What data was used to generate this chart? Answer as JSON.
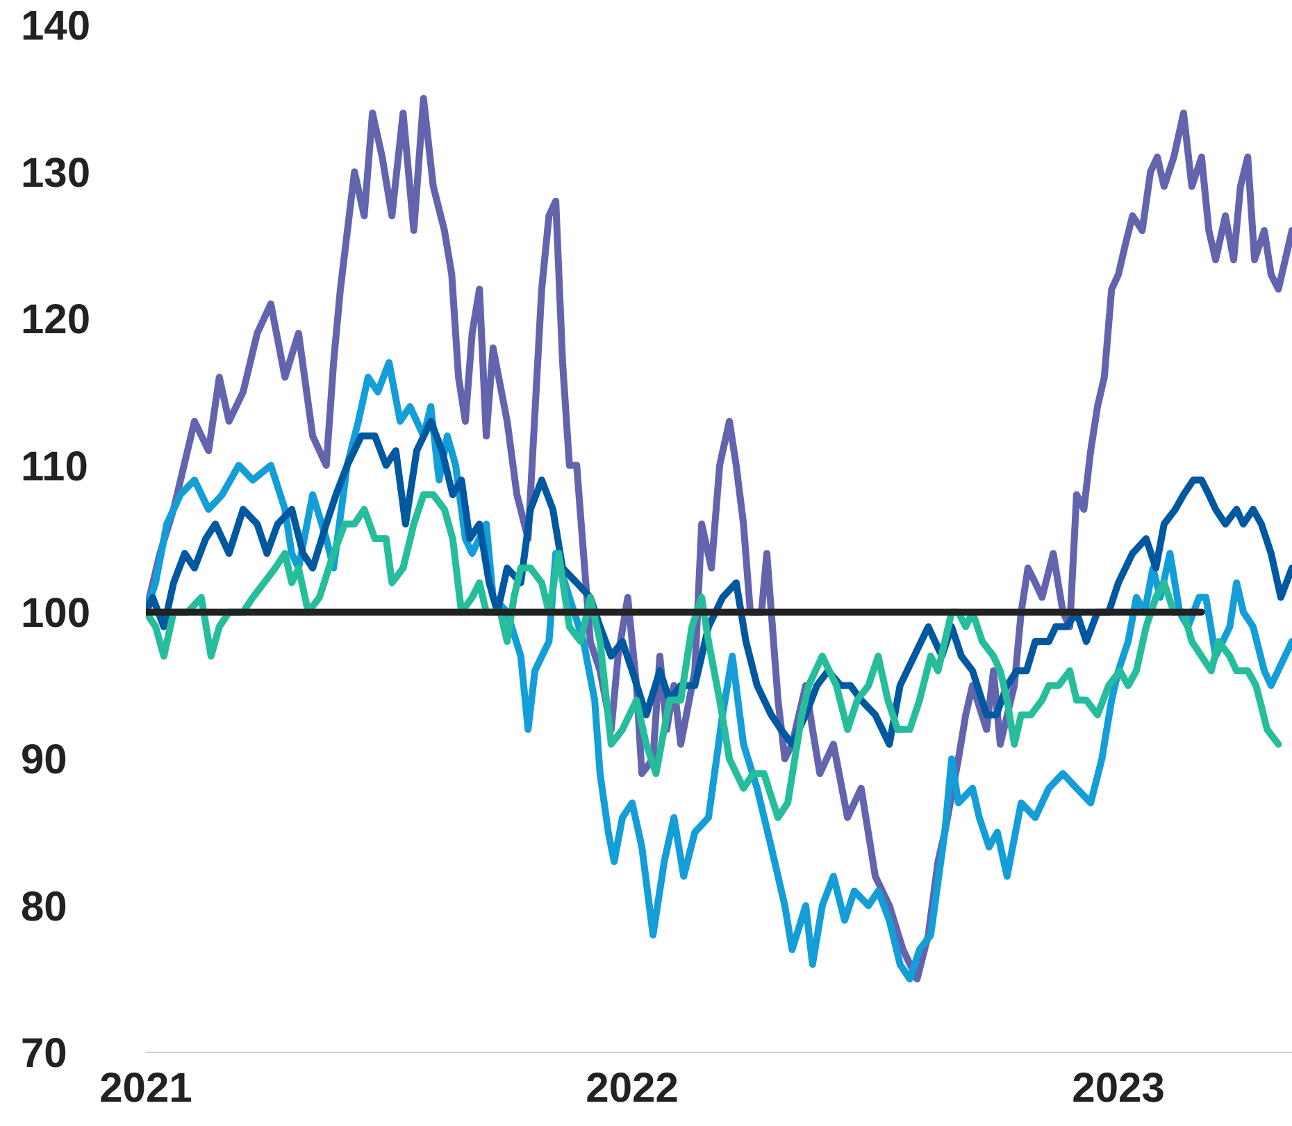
{
  "chart_data": {
    "type": "line",
    "xlim": [
      2021,
      2023.357
    ],
    "xticks": [
      2021,
      2022,
      2023
    ],
    "ylim": [
      70,
      140
    ],
    "yticks": [
      70,
      80,
      90,
      100,
      110,
      120,
      130,
      140
    ],
    "grid": false,
    "marker": "none",
    "line_style": "solid",
    "series": [
      {
        "color": "#6264ae",
        "x": [
          2021,
          2021.029,
          2021.057,
          2021.1,
          2021.129,
          2021.151,
          2021.171,
          2021.2,
          2021.229,
          2021.257,
          2021.286,
          2021.314,
          2021.343,
          2021.371,
          2021.386,
          2021.4,
          2021.429,
          2021.449,
          2021.466,
          2021.486,
          2021.506,
          2021.529,
          2021.551,
          2021.571,
          2021.591,
          2021.614,
          2021.629,
          2021.643,
          2021.657,
          2021.671,
          2021.686,
          2021.7,
          2021.714,
          2021.743,
          2021.763,
          2021.786,
          2021.814,
          2021.829,
          2021.843,
          2021.857,
          2021.871,
          2021.886,
          2021.9,
          2021.914,
          2021.934,
          2021.957,
          2021.971,
          2021.991,
          2022.009,
          2022.02,
          2022.043,
          2022.057,
          2022.071,
          2022.086,
          2022.1,
          2022.129,
          2022.143,
          2022.163,
          2022.18,
          2022.2,
          2022.214,
          2022.229,
          2022.243,
          2022.266,
          2022.277,
          2022.3,
          2022.314,
          2022.329,
          2022.357,
          2022.371,
          2022.386,
          2022.414,
          2022.443,
          2022.471,
          2022.5,
          2022.529,
          2022.557,
          2022.586,
          2022.609,
          2022.629,
          2022.643,
          2022.671,
          2022.686,
          2022.7,
          2022.729,
          2022.743,
          2022.757,
          2022.786,
          2022.8,
          2022.814,
          2022.829,
          2022.843,
          2022.866,
          2022.886,
          2022.9,
          2022.914,
          2022.929,
          2022.943,
          2022.957,
          2022.971,
          2022.986,
          2023,
          2023.014,
          2023.029,
          2023.049,
          2023.066,
          2023.08,
          2023.094,
          2023.114,
          2023.134,
          2023.151,
          2023.171,
          2023.186,
          2023.2,
          2023.22,
          2023.237,
          2023.251,
          2023.266,
          2023.28,
          2023.3,
          2023.314,
          2023.329,
          2023.343,
          2023.357
        ],
        "values": [
          100,
          104,
          107,
          113,
          111,
          116,
          113,
          115,
          119,
          121,
          116,
          119,
          112,
          110,
          117,
          122,
          130,
          127,
          134,
          131,
          127,
          134,
          126,
          135,
          129,
          126,
          123,
          116,
          113,
          119,
          122,
          112,
          118,
          113,
          108,
          105,
          122,
          127,
          128,
          117,
          110,
          110,
          104,
          98,
          96,
          92,
          97,
          101,
          95,
          89,
          90,
          97,
          92,
          95,
          91,
          96,
          106,
          103,
          110,
          113,
          110,
          106,
          100,
          100,
          104,
          94,
          90,
          91,
          95,
          92,
          89,
          91,
          86,
          88,
          82,
          80,
          77,
          75,
          78,
          83,
          85,
          90,
          93,
          95,
          92,
          96,
          91,
          95,
          100,
          103,
          102,
          101,
          104,
          100,
          99,
          108,
          107,
          111,
          114,
          116,
          122,
          123,
          125,
          127,
          126,
          130,
          131,
          129,
          131,
          134,
          129,
          131,
          126,
          124,
          127,
          124,
          129,
          131,
          124,
          126,
          123,
          122,
          124,
          126
        ]
      },
      {
        "color": "#139ed8",
        "x": [
          2021,
          2021.02,
          2021.043,
          2021.071,
          2021.1,
          2021.129,
          2021.157,
          2021.191,
          2021.22,
          2021.257,
          2021.286,
          2021.3,
          2021.314,
          2021.343,
          2021.371,
          2021.386,
          2021.414,
          2021.437,
          2021.457,
          2021.477,
          2021.5,
          2021.523,
          2021.543,
          2021.571,
          2021.586,
          2021.603,
          2021.62,
          2021.637,
          2021.657,
          2021.671,
          2021.7,
          2021.714,
          2021.743,
          2021.771,
          2021.786,
          2021.8,
          2021.829,
          2021.843,
          2021.871,
          2021.9,
          2021.923,
          2021.934,
          2021.951,
          2021.963,
          2021.98,
          2022,
          2022.02,
          2022.043,
          2022.066,
          2022.086,
          2022.106,
          2022.129,
          2022.157,
          2022.186,
          2022.206,
          2022.229,
          2022.257,
          2022.286,
          2022.314,
          2022.329,
          2022.357,
          2022.371,
          2022.391,
          2022.414,
          2022.437,
          2022.457,
          2022.486,
          2022.506,
          2022.529,
          2022.551,
          2022.571,
          2022.591,
          2022.614,
          2022.643,
          2022.657,
          2022.671,
          2022.7,
          2022.714,
          2022.734,
          2022.751,
          2022.771,
          2022.8,
          2022.829,
          2022.857,
          2022.886,
          2022.914,
          2022.943,
          2022.966,
          2022.986,
          2023,
          2023.02,
          2023.037,
          2023.054,
          2023.071,
          2023.086,
          2023.106,
          2023.126,
          2023.143,
          2023.166,
          2023.18,
          2023.2,
          2023.229,
          2023.243,
          2023.257,
          2023.277,
          2023.3,
          2023.314,
          2023.357
        ],
        "values": [
          100,
          102,
          106,
          108,
          109,
          107,
          108,
          110,
          109,
          110,
          107,
          104,
          103,
          108,
          105,
          103,
          110,
          113,
          116,
          115,
          117,
          113,
          114,
          112,
          114,
          109,
          112,
          110,
          105,
          104,
          106,
          101,
          100,
          97,
          92,
          96,
          98,
          104,
          101,
          98,
          94,
          89,
          85,
          83,
          86,
          87,
          84,
          78,
          83,
          86,
          82,
          85,
          86,
          93,
          97,
          91,
          88,
          84,
          80,
          77,
          80,
          76,
          80,
          82,
          79,
          81,
          80,
          81,
          79,
          76,
          75,
          77,
          78,
          85,
          90,
          87,
          88,
          86,
          84,
          85,
          82,
          87,
          86,
          88,
          89,
          88,
          87,
          90,
          94,
          96,
          98,
          101,
          100,
          103,
          101,
          104,
          100,
          99,
          101,
          101,
          97,
          99,
          102,
          100,
          99,
          96,
          95,
          98
        ]
      },
      {
        "color": "#0058a0",
        "x": [
          2021,
          2021.014,
          2021.037,
          2021.057,
          2021.08,
          2021.1,
          2021.123,
          2021.143,
          2021.171,
          2021.2,
          2021.229,
          2021.249,
          2021.271,
          2021.3,
          2021.323,
          2021.343,
          2021.371,
          2021.391,
          2021.414,
          2021.443,
          2021.471,
          2021.494,
          2021.514,
          2021.534,
          2021.557,
          2021.586,
          2021.609,
          2021.631,
          2021.649,
          2021.666,
          2021.686,
          2021.706,
          2021.723,
          2021.743,
          2021.771,
          2021.791,
          2021.814,
          2021.837,
          2021.857,
          2021.886,
          2021.914,
          2021.934,
          2021.957,
          2021.98,
          2022,
          2022.029,
          2022.057,
          2022.077,
          2022.1,
          2022.129,
          2022.157,
          2022.186,
          2022.214,
          2022.234,
          2022.257,
          2022.286,
          2022.306,
          2022.329,
          2022.357,
          2022.38,
          2022.403,
          2022.429,
          2022.449,
          2022.471,
          2022.5,
          2022.529,
          2022.551,
          2022.58,
          2022.609,
          2022.637,
          2022.657,
          2022.677,
          2022.7,
          2022.729,
          2022.749,
          2022.771,
          2022.791,
          2022.811,
          2022.829,
          2022.857,
          2022.871,
          2022.894,
          2022.914,
          2022.934,
          2022.957,
          2022.98,
          2023,
          2023.029,
          2023.057,
          2023.077,
          2023.094,
          2023.117,
          2023.134,
          2023.154,
          2023.171,
          2023.186,
          2023.2,
          2023.22,
          2023.243,
          2023.257,
          2023.277,
          2023.294,
          2023.314,
          2023.334,
          2023.357
        ],
        "values": [
          100,
          101,
          99,
          102,
          104,
          103,
          105,
          106,
          104,
          107,
          106,
          104,
          106,
          107,
          104,
          103,
          106,
          108,
          110,
          112,
          112,
          110,
          111,
          106,
          111,
          113,
          111,
          108,
          109,
          105,
          106,
          102,
          100,
          103,
          102,
          107,
          109,
          107,
          103,
          102,
          101,
          99,
          97,
          98,
          96,
          93,
          96,
          94,
          95,
          95,
          99,
          101,
          102,
          98,
          95,
          93,
          92,
          91,
          93,
          95,
          96,
          95,
          95,
          94,
          93,
          91,
          95,
          97,
          99,
          97,
          99,
          97,
          96,
          93,
          93,
          95,
          96,
          96,
          98,
          98,
          99,
          99,
          100,
          98,
          100,
          100,
          102,
          104,
          105,
          103,
          106,
          107,
          108,
          109,
          109,
          108,
          107,
          106,
          107,
          106,
          107,
          106,
          104,
          101,
          103
        ]
      },
      {
        "color": "#26bd9c",
        "x": [
          2021,
          2021.02,
          2021.037,
          2021.057,
          2021.086,
          2021.114,
          2021.134,
          2021.151,
          2021.171,
          2021.2,
          2021.22,
          2021.243,
          2021.266,
          2021.286,
          2021.3,
          2021.314,
          2021.334,
          2021.357,
          2021.386,
          2021.409,
          2021.429,
          2021.449,
          2021.471,
          2021.494,
          2021.506,
          2021.529,
          2021.551,
          2021.571,
          2021.591,
          2021.614,
          2021.631,
          2021.649,
          2021.671,
          2021.686,
          2021.7,
          2021.729,
          2021.743,
          2021.757,
          2021.771,
          2021.791,
          2021.814,
          2021.829,
          2021.849,
          2021.871,
          2021.894,
          2021.914,
          2021.934,
          2021.957,
          2021.98,
          2022.009,
          2022.029,
          2022.049,
          2022.077,
          2022.1,
          2022.123,
          2022.143,
          2022.157,
          2022.18,
          2022.2,
          2022.229,
          2022.249,
          2022.271,
          2022.3,
          2022.32,
          2022.349,
          2022.363,
          2022.391,
          2022.42,
          2022.443,
          2022.463,
          2022.486,
          2022.506,
          2022.526,
          2022.546,
          2022.571,
          2022.591,
          2022.614,
          2022.629,
          2022.657,
          2022.671,
          2022.686,
          2022.7,
          2022.72,
          2022.743,
          2022.757,
          2022.771,
          2022.786,
          2022.8,
          2022.82,
          2022.843,
          2022.857,
          2022.877,
          2022.9,
          2022.914,
          2022.934,
          2022.957,
          2022.98,
          2023.003,
          2023.02,
          2023.037,
          2023.057,
          2023.077,
          2023.094,
          2023.114,
          2023.134,
          2023.151,
          2023.171,
          2023.191,
          2023.206,
          2023.229,
          2023.243,
          2023.266,
          2023.283,
          2023.306,
          2023.329
        ],
        "values": [
          100,
          99,
          97,
          100,
          100,
          101,
          97,
          99,
          100,
          100,
          101,
          102,
          103,
          104,
          102,
          103,
          100,
          101,
          104,
          106,
          106,
          107,
          105,
          105,
          102,
          103,
          106,
          108,
          108,
          107,
          105,
          100,
          101,
          102,
          100,
          100,
          98,
          101,
          103,
          103,
          102,
          100,
          104,
          99,
          98,
          101,
          98,
          91,
          92,
          94,
          91,
          89,
          94,
          94,
          99,
          101,
          98,
          94,
          90,
          88,
          89,
          89,
          86,
          87,
          93,
          95,
          97,
          95,
          92,
          94,
          95,
          97,
          94,
          92,
          92,
          94,
          97,
          96,
          100,
          100,
          99,
          100,
          98,
          97,
          96,
          94,
          91,
          93,
          93,
          94,
          95,
          95,
          96,
          94,
          94,
          93,
          95,
          96,
          95,
          96,
          99,
          101,
          102,
          100,
          100,
          98,
          97,
          96,
          98,
          97,
          96,
          96,
          95,
          92,
          91
        ]
      },
      {
        "color": "#222222",
        "x": [
          2021,
          2023.171
        ],
        "values": [
          100,
          100
        ]
      }
    ]
  }
}
